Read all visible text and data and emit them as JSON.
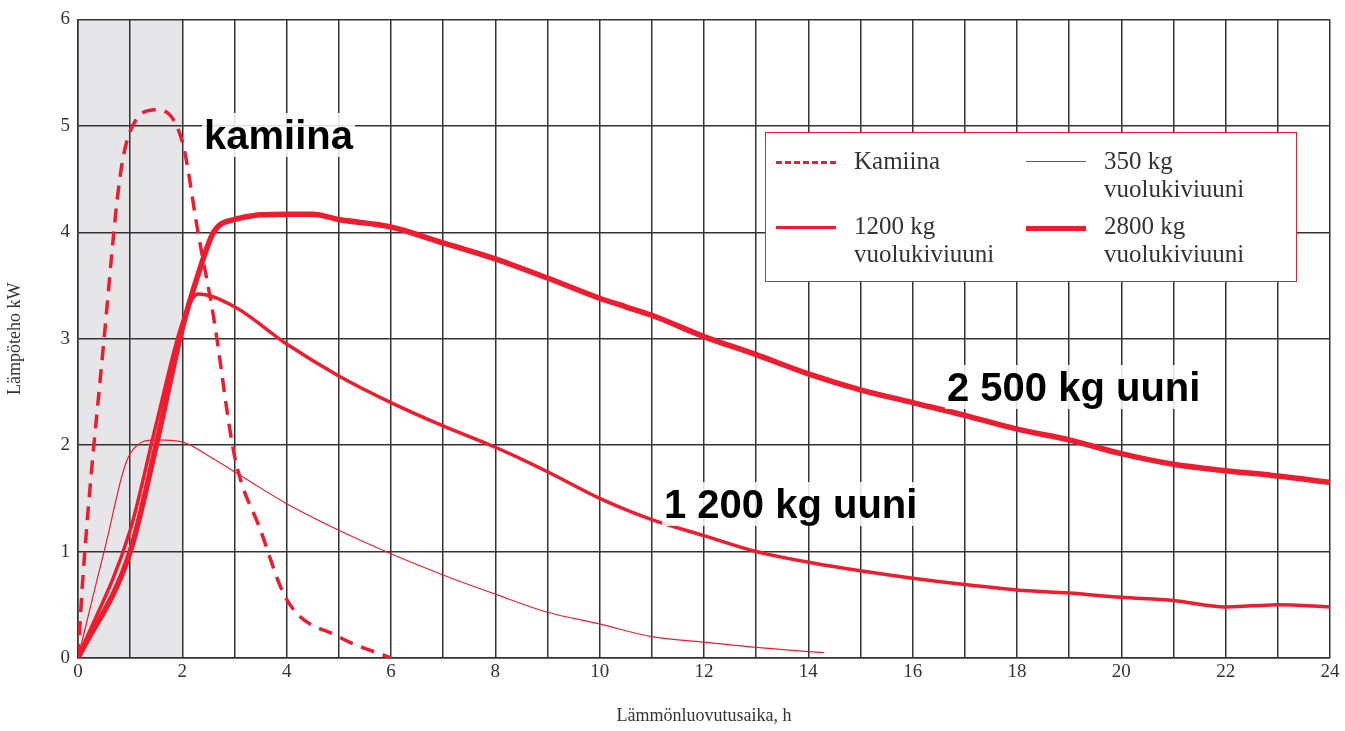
{
  "chart_data": {
    "type": "line",
    "xlabel": "Lämmönluovutusaika, h",
    "ylabel": "Lämpöteho kW",
    "xlim": [
      0,
      24
    ],
    "ylim": [
      0,
      6
    ],
    "xticks": [
      0,
      {
        "value": 1,
        "label": null
      },
      2,
      {
        "value": 3,
        "label": null
      },
      4,
      {
        "value": 5,
        "label": null
      },
      6,
      {
        "value": 7,
        "label": null
      },
      8,
      {
        "value": 9,
        "label": null
      },
      10,
      {
        "value": 11,
        "label": null
      },
      12,
      {
        "value": 13,
        "label": null
      },
      14,
      {
        "value": 15,
        "label": null
      },
      16,
      {
        "value": 17,
        "label": null
      },
      18,
      {
        "value": 19,
        "label": null
      },
      20,
      {
        "value": 21,
        "label": null
      },
      22,
      {
        "value": 23,
        "label": null
      },
      24
    ],
    "yticks": [
      0,
      1,
      2,
      3,
      4,
      5,
      6
    ],
    "grid": true,
    "legend": "top right",
    "marker": "none",
    "bands": [
      {
        "axis": "x",
        "from": 0,
        "to": 2,
        "color": "#e6e6e9"
      }
    ],
    "annotations": [
      "kamiina",
      "2 500 kg uuni",
      "1 200 kg uuni"
    ],
    "series": [
      {
        "name": "Kamiina",
        "color": "#ed1c2e",
        "line_style": "dashed",
        "x": [
          0,
          0.1,
          0.5,
          0.8,
          1,
          1.5,
          2,
          2.3,
          2.6,
          3,
          3.5,
          4,
          5,
          6
        ],
        "values": [
          0,
          0.8,
          3,
          4.5,
          4.95,
          5.15,
          4.85,
          4,
          3.2,
          1.9,
          1.2,
          0.55,
          0.2,
          0
        ]
      },
      {
        "name": "350 kg vuolukiviuuni",
        "color": "#ed1c2e",
        "line_style": "solid",
        "x": [
          0,
          0.5,
          1,
          1.5,
          2,
          2.5,
          3,
          4,
          5,
          6,
          7,
          8,
          9,
          10,
          11,
          12,
          13,
          14,
          14.3
        ],
        "values": [
          0,
          1,
          1.92,
          2.05,
          2.03,
          1.9,
          1.75,
          1.45,
          1.2,
          0.98,
          0.78,
          0.6,
          0.43,
          0.32,
          0.2,
          0.15,
          0.1,
          0.06,
          0.05
        ]
      },
      {
        "name": "1200 kg vuolukiviuuni",
        "color": "#ed1c2e",
        "line_style": "solid",
        "x": [
          0,
          1,
          1.5,
          2,
          2.3,
          3,
          4,
          5,
          6,
          7,
          8,
          9,
          10,
          11,
          12,
          13,
          14,
          15,
          16,
          17,
          18,
          19,
          20,
          21,
          22,
          22.5,
          23,
          24
        ],
        "values": [
          0,
          1.2,
          2.2,
          3.15,
          3.42,
          3.3,
          2.95,
          2.65,
          2.4,
          2.18,
          1.98,
          1.75,
          1.5,
          1.3,
          1.15,
          1,
          0.9,
          0.82,
          0.75,
          0.69,
          0.64,
          0.61,
          0.57,
          0.54,
          0.48,
          0.49,
          0.5,
          0.48
        ]
      },
      {
        "name": "2800 kg vuolukiviuuni",
        "color": "#ed1c2e",
        "line_style": "solid",
        "x": [
          0,
          1,
          1.5,
          2,
          2.3,
          2.6,
          3,
          4,
          4.5,
          5,
          6,
          7,
          8,
          9,
          10,
          10.5,
          11,
          12,
          13,
          14,
          15,
          16,
          17,
          18,
          19,
          20,
          21,
          22,
          23,
          24
        ],
        "values": [
          0,
          1,
          2,
          3.1,
          3.6,
          4,
          4.12,
          4.17,
          4.17,
          4.12,
          4.05,
          3.9,
          3.75,
          3.57,
          3.38,
          3.3,
          3.22,
          3.02,
          2.85,
          2.67,
          2.52,
          2.4,
          2.28,
          2.15,
          2.05,
          1.92,
          1.82,
          1.76,
          1.71,
          1.65
        ]
      }
    ]
  }
}
